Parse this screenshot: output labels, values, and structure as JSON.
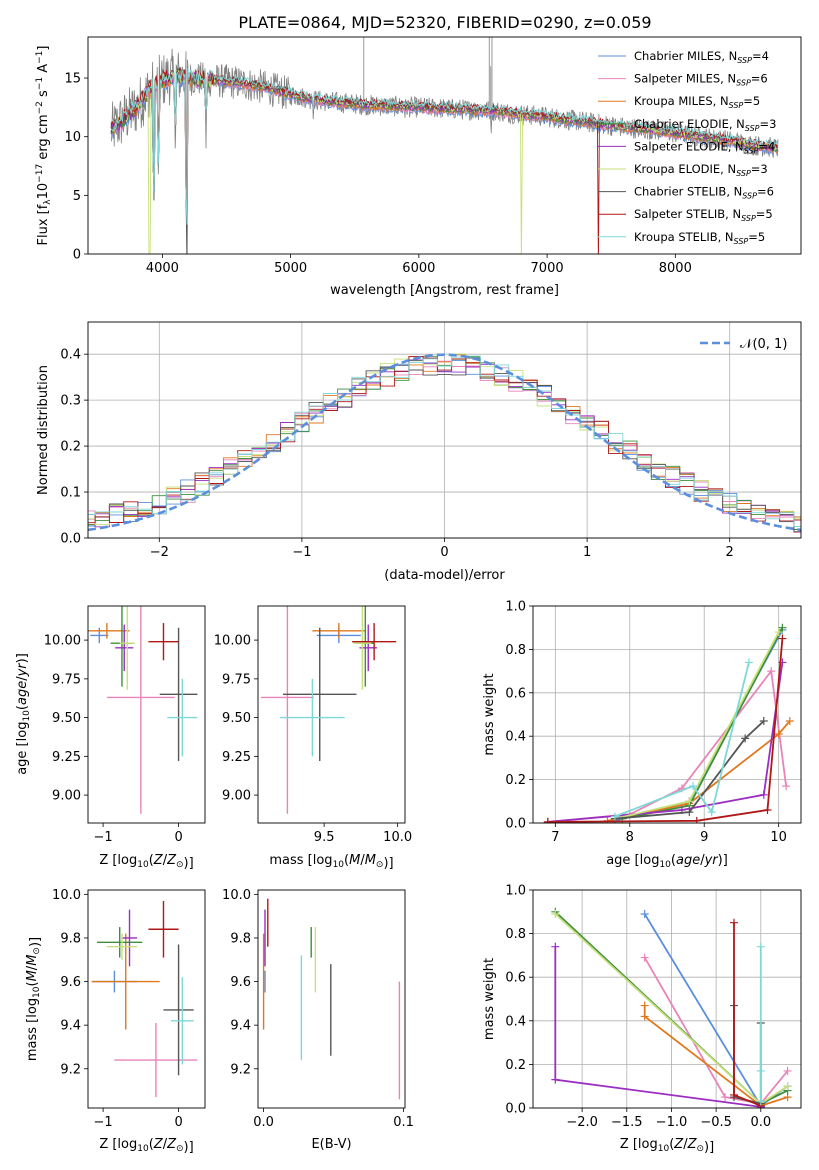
{
  "figure_title": "PLATE=0864, MJD=52320, FIBERID=0290, z=0.059",
  "colors": {
    "Chabrier MILES": "#5b8fdc",
    "Salpeter MILES": "#e884b8",
    "Kroupa MILES": "#e0781e",
    "Chabrier ELODIE": "#3d8f3d",
    "Salpeter ELODIE": "#9b2fc2",
    "Kroupa ELODIE": "#c8e07a",
    "Chabrier STELIB": "#555555",
    "Salpeter STELIB": "#b01818",
    "Kroupa STELIB": "#7ed8d8",
    "data": "#808080"
  },
  "chart_data": [
    {
      "id": "spectrum",
      "type": "line",
      "title": "PLATE=0864, MJD=52320, FIBERID=0290, z=0.059",
      "xlabel": "wavelength [Angstrom, rest frame]",
      "ylabel": "Flux [f",
      "ylabel_parts": [
        "Flux [f",
        "λ",
        "10",
        "−17",
        " erg cm",
        "−2",
        " s",
        "−1",
        " A",
        "−1",
        "]"
      ],
      "xlim": [
        3420,
        8980
      ],
      "ylim": [
        0,
        18.5
      ],
      "xticks": [
        4000,
        5000,
        6000,
        7000,
        8000
      ],
      "yticks": [
        0,
        5,
        10,
        15
      ],
      "grid": false,
      "legend_position": "top-right",
      "legend": [
        {
          "name": "Chabrier MILES",
          "nssp": "=4"
        },
        {
          "name": "Salpeter MILES",
          "nssp": "=6"
        },
        {
          "name": "Kroupa MILES",
          "nssp": "=5"
        },
        {
          "name": "Chabrier ELODIE",
          "nssp": "=3"
        },
        {
          "name": "Salpeter ELODIE",
          "nssp": "=4"
        },
        {
          "name": "Kroupa ELODIE",
          "nssp": "=3"
        },
        {
          "name": "Chabrier STELIB",
          "nssp": "=6"
        },
        {
          "name": "Salpeter STELIB",
          "nssp": "=5"
        },
        {
          "name": "Kroupa STELIB",
          "nssp": "=5"
        }
      ],
      "nssp_prefix": "N",
      "nssp_sub": "SSP",
      "continuum": {
        "x": [
          3600,
          3700,
          3800,
          3900,
          4000,
          4100,
          4200,
          4400,
          4600,
          4800,
          5000,
          5200,
          5400,
          5600,
          5800,
          6000,
          6200,
          6400,
          6600,
          6800,
          7000,
          7200,
          7400,
          7600,
          7800,
          8000,
          8200,
          8400,
          8600,
          8800
        ],
        "y": [
          10.5,
          11.5,
          12.5,
          14.0,
          14.8,
          15.2,
          15.0,
          14.8,
          14.6,
          14.2,
          13.6,
          13.1,
          12.9,
          12.7,
          12.6,
          12.5,
          12.4,
          12.3,
          12.2,
          11.9,
          11.7,
          11.4,
          11.1,
          10.8,
          10.6,
          10.3,
          10.0,
          9.7,
          9.3,
          9.0
        ]
      },
      "dips": [
        {
          "x": 3934,
          "y": 3.0
        },
        {
          "x": 3969,
          "y": 6.0
        },
        {
          "x": 4101,
          "y": 8.2
        },
        {
          "x": 4190,
          "y": 0.3
        },
        {
          "x": 4340,
          "y": 9.0
        },
        {
          "x": 5175,
          "y": 10.7
        },
        {
          "x": 5893,
          "y": 10.8
        },
        {
          "x": 6563,
          "y": 9.5
        }
      ],
      "spikes": [
        {
          "x": 5570,
          "y": 18.5
        },
        {
          "x": 6550,
          "y": 18.5
        },
        {
          "x": 6560,
          "y": 16.0
        },
        {
          "x": 6570,
          "y": 18.5
        }
      ],
      "model_dropouts": [
        {
          "x": 3900,
          "series": "Kroupa ELODIE"
        },
        {
          "x": 4190,
          "series": "Chabrier STELIB"
        },
        {
          "x": 6800,
          "series": "Kroupa ELODIE"
        },
        {
          "x": 7400,
          "series": "Salpeter STELIB"
        }
      ]
    },
    {
      "id": "residuals",
      "type": "histogram",
      "xlabel": "(data-model)/error",
      "ylabel": "Normed distribution",
      "xlim": [
        -2.5,
        2.5
      ],
      "ylim": [
        0,
        0.47
      ],
      "xticks": [
        -2,
        -1,
        0,
        1,
        2
      ],
      "yticks": [
        0.0,
        0.1,
        0.2,
        0.3,
        0.4
      ],
      "grid": true,
      "legend_position": "top-right",
      "legend": [
        "𝒩(0, 1)"
      ],
      "bin_width": 0.1,
      "reference_curve": "normal(0,1)"
    },
    {
      "id": "age_vs_Z",
      "type": "errorbar",
      "xlabel": "Z [log",
      "ylabel": "age  [log",
      "xlim": [
        -1.2,
        0.35
      ],
      "ylim": [
        8.82,
        10.22
      ],
      "xticks": [
        -1,
        0
      ],
      "yticks": [
        9.0,
        9.25,
        9.5,
        9.75,
        10.0
      ],
      "points": [
        {
          "series": "Chabrier MILES",
          "x": -1.05,
          "xerr": 0.12,
          "y": 10.03,
          "yerr": 0.05
        },
        {
          "series": "Salpeter MILES",
          "x": -0.5,
          "xerr": 0.45,
          "y": 9.63,
          "yerr": 0.75
        },
        {
          "series": "Kroupa MILES",
          "x": -0.95,
          "xerr": 0.3,
          "y": 10.06,
          "yerr": 0.05
        },
        {
          "series": "Chabrier ELODIE",
          "x": -0.75,
          "xerr": 0.15,
          "y": 9.98,
          "yerr": 0.28
        },
        {
          "series": "Salpeter ELODIE",
          "x": -0.72,
          "xerr": 0.12,
          "y": 9.95,
          "yerr": 0.15
        },
        {
          "series": "Kroupa ELODIE",
          "x": -0.68,
          "xerr": 0.1,
          "y": 9.98,
          "yerr": 0.3
        },
        {
          "series": "Chabrier STELIB",
          "x": 0.0,
          "xerr": 0.25,
          "y": 9.65,
          "yerr": 0.43
        },
        {
          "series": "Salpeter STELIB",
          "x": -0.2,
          "xerr": 0.2,
          "y": 9.99,
          "yerr": 0.12
        },
        {
          "series": "Kroupa STELIB",
          "x": 0.05,
          "xerr": 0.2,
          "y": 9.5,
          "yerr": 0.25
        }
      ]
    },
    {
      "id": "age_vs_mass",
      "type": "errorbar",
      "xlabel": "mass [log",
      "xlim": [
        9.05,
        10.05
      ],
      "ylim": [
        8.82,
        10.22
      ],
      "xticks": [
        9.5,
        10.0
      ],
      "yticks": [
        9.0,
        9.25,
        9.5,
        9.75,
        10.0
      ],
      "points": [
        {
          "series": "Chabrier MILES",
          "x": 9.6,
          "xerr": 0.15,
          "y": 10.03,
          "yerr": 0.05
        },
        {
          "series": "Salpeter MILES",
          "x": 9.25,
          "xerr": 0.18,
          "y": 9.63,
          "yerr": 0.75
        },
        {
          "series": "Kroupa MILES",
          "x": 9.6,
          "xerr": 0.18,
          "y": 10.06,
          "yerr": 0.05
        },
        {
          "series": "Chabrier ELODIE",
          "x": 9.78,
          "xerr": 0.06,
          "y": 9.98,
          "yerr": 0.28
        },
        {
          "series": "Salpeter ELODIE",
          "x": 9.8,
          "xerr": 0.06,
          "y": 9.95,
          "yerr": 0.15
        },
        {
          "series": "Kroupa ELODIE",
          "x": 9.76,
          "xerr": 0.06,
          "y": 9.98,
          "yerr": 0.3
        },
        {
          "series": "Chabrier STELIB",
          "x": 9.47,
          "xerr": 0.25,
          "y": 9.65,
          "yerr": 0.43
        },
        {
          "series": "Salpeter STELIB",
          "x": 9.84,
          "xerr": 0.15,
          "y": 9.99,
          "yerr": 0.12
        },
        {
          "series": "Kroupa STELIB",
          "x": 9.42,
          "xerr": 0.22,
          "y": 9.5,
          "yerr": 0.25
        }
      ]
    },
    {
      "id": "weight_vs_age",
      "type": "line",
      "xlabel": "age  [log",
      "ylabel": "mass weight",
      "xlim": [
        6.7,
        10.3
      ],
      "ylim": [
        0,
        1.0
      ],
      "xticks": [
        7,
        8,
        9,
        10
      ],
      "yticks": [
        0.0,
        0.2,
        0.4,
        0.6,
        0.8,
        1.0
      ],
      "grid": true,
      "series": [
        {
          "name": "Chabrier MILES",
          "x": [
            7.8,
            8.8,
            10.05
          ],
          "y": [
            0.01,
            0.1,
            0.89
          ]
        },
        {
          "name": "Salpeter MILES",
          "x": [
            6.9,
            8.0,
            8.7,
            9.9,
            10.1
          ],
          "y": [
            0.005,
            0.04,
            0.16,
            0.7,
            0.17
          ]
        },
        {
          "name": "Kroupa MILES",
          "x": [
            7.7,
            8.8,
            10.0,
            10.15
          ],
          "y": [
            0.01,
            0.09,
            0.41,
            0.47
          ]
        },
        {
          "name": "Chabrier ELODIE",
          "x": [
            7.9,
            8.8,
            10.05
          ],
          "y": [
            0.02,
            0.08,
            0.9
          ]
        },
        {
          "name": "Salpeter ELODIE",
          "x": [
            6.9,
            8.7,
            9.8,
            10.05
          ],
          "y": [
            0.005,
            0.06,
            0.13,
            0.74
          ]
        },
        {
          "name": "Kroupa ELODIE",
          "x": [
            7.8,
            8.8,
            10.0
          ],
          "y": [
            0.02,
            0.1,
            0.88
          ]
        },
        {
          "name": "Chabrier STELIB",
          "x": [
            7.8,
            8.8,
            9.55,
            9.8
          ],
          "y": [
            0.02,
            0.05,
            0.39,
            0.47
          ]
        },
        {
          "name": "Salpeter STELIB",
          "x": [
            6.9,
            8.9,
            9.85,
            10.05
          ],
          "y": [
            0.005,
            0.01,
            0.06,
            0.85
          ]
        },
        {
          "name": "Kroupa STELIB",
          "x": [
            7.8,
            8.85,
            9.1,
            9.6
          ],
          "y": [
            0.03,
            0.17,
            0.05,
            0.74
          ]
        }
      ]
    },
    {
      "id": "mass_vs_Z",
      "type": "errorbar",
      "xlabel": "Z [log",
      "ylabel": "mass [log",
      "xlim": [
        -1.2,
        0.35
      ],
      "ylim": [
        9.02,
        10.02
      ],
      "xticks": [
        -1,
        0
      ],
      "yticks": [
        9.2,
        9.4,
        9.6,
        9.8,
        10.0
      ],
      "points": [
        {
          "series": "Chabrier MILES",
          "x": -0.85,
          "xerr": 0.3,
          "y": 9.6,
          "yerr": 0.05
        },
        {
          "series": "Salpeter MILES",
          "x": -0.3,
          "xerr": 0.55,
          "y": 9.24,
          "yerr": 0.17
        },
        {
          "series": "Kroupa MILES",
          "x": -0.7,
          "xerr": 0.45,
          "y": 9.6,
          "yerr": 0.22
        },
        {
          "series": "Chabrier ELODIE",
          "x": -0.78,
          "xerr": 0.3,
          "y": 9.78,
          "yerr": 0.07
        },
        {
          "series": "Salpeter ELODIE",
          "x": -0.65,
          "xerr": 0.1,
          "y": 9.8,
          "yerr": 0.13
        },
        {
          "series": "Kroupa ELODIE",
          "x": -0.75,
          "xerr": 0.2,
          "y": 9.76,
          "yerr": 0.06
        },
        {
          "series": "Chabrier STELIB",
          "x": 0.0,
          "xerr": 0.2,
          "y": 9.47,
          "yerr": 0.3
        },
        {
          "series": "Salpeter STELIB",
          "x": -0.2,
          "xerr": 0.2,
          "y": 9.84,
          "yerr": 0.13
        },
        {
          "series": "Kroupa STELIB",
          "x": 0.05,
          "xerr": 0.15,
          "y": 9.42,
          "yerr": 0.2
        }
      ]
    },
    {
      "id": "mass_vs_ebv",
      "type": "errorbar",
      "xlabel": "E(B-V)",
      "xlim": [
        -0.004,
        0.101
      ],
      "ylim": [
        9.02,
        10.02
      ],
      "xticks": [
        0.0,
        0.1
      ],
      "yticks": [
        9.2,
        9.4,
        9.6,
        9.8,
        10.0
      ],
      "points": [
        {
          "series": "Chabrier MILES",
          "x": 0.001,
          "xerr": 0.0,
          "y": 9.6,
          "yerr": 0.05
        },
        {
          "series": "Salpeter MILES",
          "x": 0.097,
          "xerr": 0.0,
          "y": 9.33,
          "yerr": 0.27
        },
        {
          "series": "Kroupa MILES",
          "x": 0.0,
          "xerr": 0.0,
          "y": 9.6,
          "yerr": 0.22
        },
        {
          "series": "Chabrier ELODIE",
          "x": 0.034,
          "xerr": 0.0,
          "y": 9.78,
          "yerr": 0.07
        },
        {
          "series": "Salpeter ELODIE",
          "x": 0.001,
          "xerr": 0.0,
          "y": 9.8,
          "yerr": 0.13
        },
        {
          "series": "Kroupa ELODIE",
          "x": 0.037,
          "xerr": 0.0,
          "y": 9.7,
          "yerr": 0.15
        },
        {
          "series": "Chabrier STELIB",
          "x": 0.048,
          "xerr": 0.0,
          "y": 9.47,
          "yerr": 0.21
        },
        {
          "series": "Salpeter STELIB",
          "x": 0.003,
          "xerr": 0.0,
          "y": 9.87,
          "yerr": 0.11
        },
        {
          "series": "Kroupa STELIB",
          "x": 0.027,
          "xerr": 0.0,
          "y": 9.48,
          "yerr": 0.24
        }
      ]
    },
    {
      "id": "weight_vs_Z",
      "type": "line",
      "xlabel": "Z [log",
      "ylabel": "mass weight",
      "xlim": [
        -2.55,
        0.45
      ],
      "ylim": [
        0,
        1.0
      ],
      "xticks": [
        -2.0,
        -1.5,
        -1.0,
        -0.5,
        0.0
      ],
      "yticks": [
        0.0,
        0.2,
        0.4,
        0.6,
        0.8,
        1.0
      ],
      "grid": true,
      "series": [
        {
          "name": "Chabrier MILES",
          "x": [
            -1.3,
            0.0,
            0.3
          ],
          "y": [
            0.89,
            0.01,
            0.1
          ]
        },
        {
          "name": "Salpeter MILES",
          "x": [
            -1.3,
            -0.4,
            0.0,
            0.3
          ],
          "y": [
            0.69,
            0.05,
            0.02,
            0.17
          ]
        },
        {
          "name": "Kroupa MILES",
          "x": [
            -1.3,
            -1.3,
            0.0,
            0.3
          ],
          "y": [
            0.47,
            0.42,
            0.01,
            0.05
          ]
        },
        {
          "name": "Chabrier ELODIE",
          "x": [
            -2.3,
            0.0,
            0.3
          ],
          "y": [
            0.9,
            0.02,
            0.08
          ]
        },
        {
          "name": "Salpeter ELODIE",
          "x": [
            -2.3,
            -2.3,
            0.0
          ],
          "y": [
            0.74,
            0.13,
            0.005
          ]
        },
        {
          "name": "Kroupa ELODIE",
          "x": [
            -2.3,
            0.0,
            0.3
          ],
          "y": [
            0.89,
            0.02,
            0.1
          ]
        },
        {
          "name": "Chabrier STELIB",
          "x": [
            -0.3,
            -0.3,
            0.0,
            0.0
          ],
          "y": [
            0.47,
            0.05,
            0.02,
            0.39
          ]
        },
        {
          "name": "Salpeter STELIB",
          "x": [
            -0.3,
            -0.3,
            0.0
          ],
          "y": [
            0.85,
            0.06,
            0.01
          ]
        },
        {
          "name": "Kroupa STELIB",
          "x": [
            0.0,
            0.0,
            0.0
          ],
          "y": [
            0.74,
            0.17,
            0.03
          ]
        }
      ]
    }
  ]
}
